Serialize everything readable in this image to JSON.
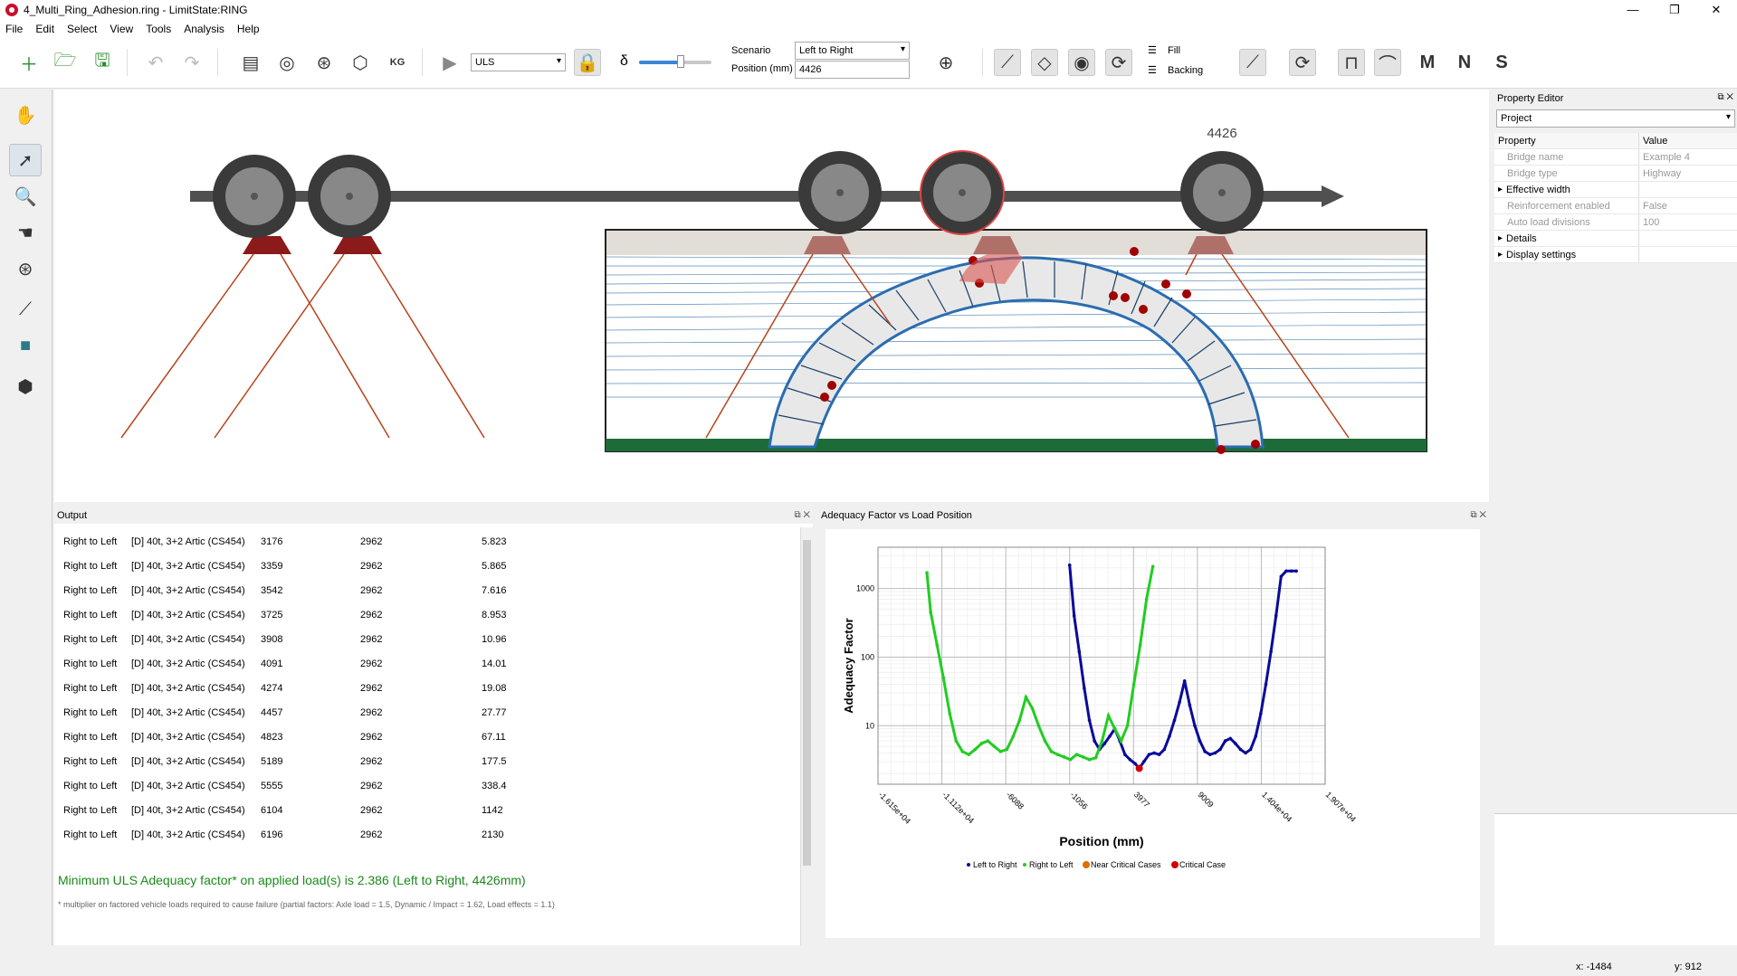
{
  "window": {
    "title": "4_Multi_Ring_Adhesion.ring - LimitState:RING"
  },
  "menu": [
    "File",
    "Edit",
    "Select",
    "View",
    "Tools",
    "Analysis",
    "Help"
  ],
  "toolbar": {
    "limit_state": "ULS",
    "delta_symbol": "δ",
    "scenario_label": "Scenario",
    "scenario_value": "Left to Right",
    "position_label": "Position (mm)",
    "position_value": "4426",
    "fill_label": "Fill",
    "backing_label": "Backing",
    "moment_label": "M",
    "normal_label": "N",
    "shear_label": "S"
  },
  "canvas": {
    "position_marker": "4426"
  },
  "output": {
    "title": "Output",
    "rows": [
      [
        "Right to Left",
        "[D] 40t, 3+2 Artic (CS454)",
        "3176",
        "2962",
        "5.823"
      ],
      [
        "Right to Left",
        "[D] 40t, 3+2 Artic (CS454)",
        "3359",
        "2962",
        "5.865"
      ],
      [
        "Right to Left",
        "[D] 40t, 3+2 Artic (CS454)",
        "3542",
        "2962",
        "7.616"
      ],
      [
        "Right to Left",
        "[D] 40t, 3+2 Artic (CS454)",
        "3725",
        "2962",
        "8.953"
      ],
      [
        "Right to Left",
        "[D] 40t, 3+2 Artic (CS454)",
        "3908",
        "2962",
        "10.96"
      ],
      [
        "Right to Left",
        "[D] 40t, 3+2 Artic (CS454)",
        "4091",
        "2962",
        "14.01"
      ],
      [
        "Right to Left",
        "[D] 40t, 3+2 Artic (CS454)",
        "4274",
        "2962",
        "19.08"
      ],
      [
        "Right to Left",
        "[D] 40t, 3+2 Artic (CS454)",
        "4457",
        "2962",
        "27.77"
      ],
      [
        "Right to Left",
        "[D] 40t, 3+2 Artic (CS454)",
        "4823",
        "2962",
        "67.11"
      ],
      [
        "Right to Left",
        "[D] 40t, 3+2 Artic (CS454)",
        "5189",
        "2962",
        "177.5"
      ],
      [
        "Right to Left",
        "[D] 40t, 3+2 Artic (CS454)",
        "5555",
        "2962",
        "338.4"
      ],
      [
        "Right to Left",
        "[D] 40t, 3+2 Artic (CS454)",
        "6104",
        "2962",
        "1142"
      ],
      [
        "Right to Left",
        "[D] 40t, 3+2 Artic (CS454)",
        "6196",
        "2962",
        "2130"
      ]
    ],
    "summary": "Minimum ULS Adequacy factor* on applied load(s) is 2.386 (Left to Right, 4426mm)",
    "footnote": "* multiplier on factored vehicle loads required to cause failure (partial factors: Axle load = 1.5, Dynamic / Impact = 1.62, Load effects = 1.1)"
  },
  "chart_panel": {
    "title": "Adequacy Factor vs Load Position"
  },
  "chart_data": {
    "type": "line",
    "title": "",
    "xlabel": "Position (mm)",
    "ylabel": "Adequacy Factor",
    "y_scale": "log",
    "xlim": [
      -16150,
      19070
    ],
    "ylim": [
      1.4,
      4000
    ],
    "x_ticks": [
      "-1.615e+04",
      "-1.112e+04",
      "-6088",
      "-1056",
      "3977",
      "9009",
      "1.404e+04",
      "1.907e+04"
    ],
    "y_ticks": [
      "10",
      "100",
      "1000"
    ],
    "grid": true,
    "legend_position": "bottom",
    "series": [
      {
        "name": "Left to Right",
        "color": "#0a0a9a",
        "x": [
          -1056,
          -700,
          -300,
          100,
          500,
          900,
          1300,
          1700,
          2100,
          2500,
          2900,
          3300,
          3700,
          4100,
          4426,
          4800,
          5200,
          5600,
          6000,
          6400,
          6800,
          7200,
          7600,
          8000,
          8400,
          8800,
          9200,
          9600,
          10000,
          10400,
          10800,
          11200,
          11600,
          12000,
          12400,
          12800,
          13200,
          13600,
          14000,
          14400,
          14800,
          15200,
          15600,
          16000,
          16400,
          16800
        ],
        "y": [
          2200,
          400,
          120,
          35,
          12,
          6,
          4.5,
          5.5,
          7,
          9,
          6,
          3.8,
          3.2,
          2.8,
          2.386,
          3,
          3.8,
          4,
          3.8,
          4.5,
          7,
          12,
          22,
          45,
          20,
          10,
          6,
          4.2,
          3.8,
          4,
          4.5,
          6,
          6.5,
          5.5,
          4.5,
          4,
          4.5,
          7,
          15,
          40,
          120,
          400,
          1500,
          1800,
          1800,
          1800
        ]
      },
      {
        "name": "Right to Left",
        "color": "#22cc22",
        "x": [
          -12300,
          -12000,
          -11500,
          -11000,
          -10500,
          -10000,
          -9500,
          -9000,
          -8500,
          -8000,
          -7500,
          -7000,
          -6500,
          -6000,
          -5500,
          -5000,
          -4500,
          -4000,
          -3500,
          -3000,
          -2500,
          -2000,
          -1500,
          -1000,
          -500,
          0,
          500,
          1000,
          1500,
          2000,
          2500,
          3000,
          3500,
          4000,
          4500,
          5000,
          5500
        ],
        "y": [
          1700,
          450,
          150,
          50,
          15,
          6,
          4.2,
          3.8,
          4.5,
          5.5,
          6,
          5,
          4.2,
          4.5,
          7,
          12,
          26,
          18,
          10,
          6,
          4.2,
          3.8,
          3.5,
          3.2,
          3.8,
          3.5,
          3.2,
          3.4,
          6,
          14,
          9,
          6,
          10,
          40,
          150,
          700,
          2100
        ]
      },
      {
        "name": "Near Critical Cases",
        "color": "#e06d00",
        "x": [],
        "y": []
      },
      {
        "name": "Critical Case",
        "color": "#d40000",
        "x": [
          4426
        ],
        "y": [
          2.386
        ]
      }
    ]
  },
  "property_editor": {
    "title": "Property Editor",
    "selector": "Project",
    "header": [
      "Property",
      "Value"
    ],
    "rows": [
      {
        "k": "Bridge name",
        "v": "Example 4",
        "state": "disabled"
      },
      {
        "k": "Bridge type",
        "v": "Highway",
        "state": "disabled"
      },
      {
        "k": "Effective width",
        "v": "",
        "state": "group"
      },
      {
        "k": "Reinforcement enabled",
        "v": "False",
        "state": "disabled"
      },
      {
        "k": "Auto load divisions",
        "v": "100",
        "state": "disabled"
      },
      {
        "k": "Details",
        "v": "",
        "state": "group"
      },
      {
        "k": "Display settings",
        "v": "",
        "state": "group"
      }
    ]
  },
  "status": {
    "x": "x: -1484",
    "y": "y: 912"
  }
}
